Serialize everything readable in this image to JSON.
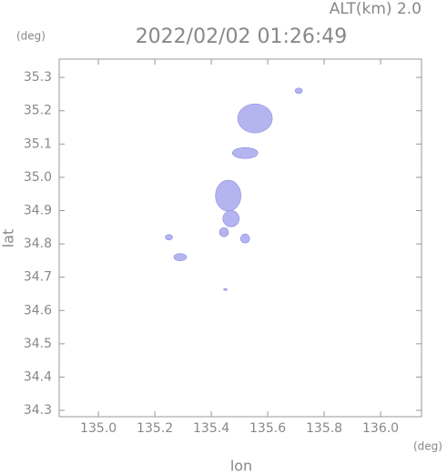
{
  "chart_data": {
    "type": "scatter",
    "title": "2022/02/02 01:26:49",
    "subtitle": "ALT(km) 2.0",
    "y_unit": "(deg)",
    "x_unit": "(deg)",
    "x_label": "lon",
    "y_label": "lat",
    "color": "#b4b4f0",
    "x": [
      135.555,
      135.52,
      135.71,
      135.46,
      135.47,
      135.445,
      135.52,
      135.25,
      135.29,
      135.45
    ],
    "values": [
      35.177,
      35.073,
      35.26,
      34.945,
      34.876,
      34.835,
      34.816,
      34.82,
      34.76,
      34.663
    ],
    "xlim": [
      134.861,
      136.145
    ],
    "ylim": [
      34.281,
      35.355
    ],
    "xticks": [
      {
        "value": 135,
        "label": "135.0"
      },
      135.2,
      135.4,
      135.6,
      135.8,
      {
        "value": 136,
        "label": "136.0"
      }
    ],
    "yticks": [
      34.3,
      34.4,
      34.5,
      34.6,
      34.7,
      34.8,
      34.9,
      {
        "value": 35,
        "label": "35.0"
      },
      35.1,
      35.2,
      35.3
    ]
  }
}
